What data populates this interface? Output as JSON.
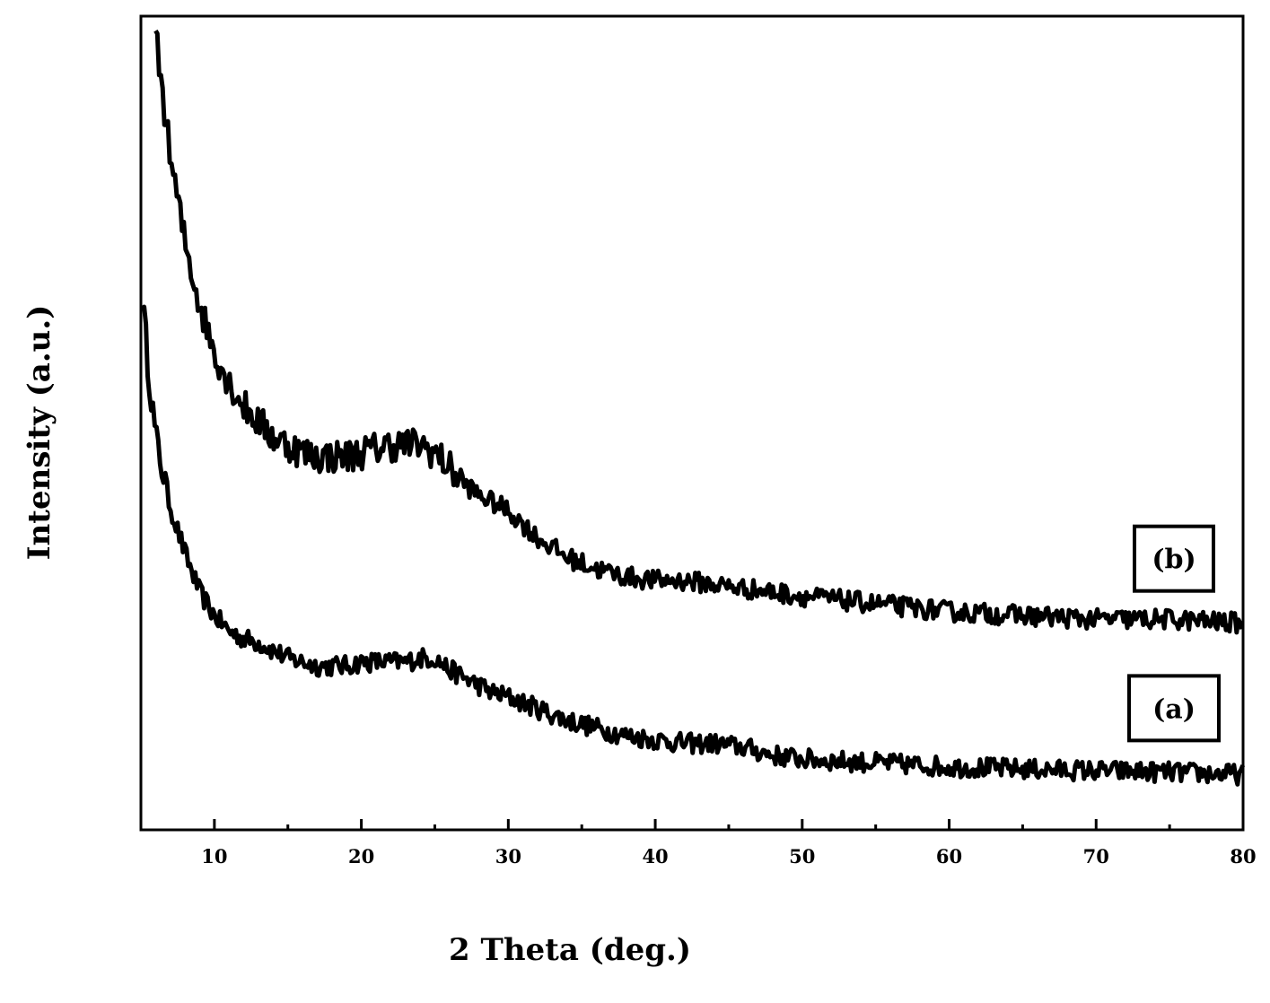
{
  "chart_data": {
    "type": "line",
    "title": "",
    "xlabel": "2 Theta (deg.)",
    "ylabel": "Intensity (a.u.)",
    "xlim": [
      5,
      80
    ],
    "ylim": [
      0,
      100
    ],
    "x_major_ticks": [
      10,
      20,
      30,
      40,
      50,
      60,
      70,
      80
    ],
    "x_minor_ticks": [
      5,
      15,
      25,
      35,
      45,
      55,
      65,
      75
    ],
    "y_tick_labels": false,
    "grid": false,
    "line_color": "#000000",
    "series": [
      {
        "name": "(a)",
        "label_box": true,
        "x": [
          5.1,
          5.5,
          6,
          7,
          8,
          9,
          10,
          11,
          12,
          13,
          14,
          15,
          16,
          17,
          18,
          19,
          20,
          21,
          22,
          23,
          24,
          25,
          26,
          27,
          28,
          29,
          30,
          32,
          34,
          36,
          38,
          40,
          42,
          44,
          46,
          48,
          50,
          55,
          60,
          65,
          70,
          75,
          80
        ],
        "y": [
          64,
          55,
          46,
          37,
          31,
          26,
          23,
          21,
          20,
          19.5,
          18.5,
          17.5,
          17,
          16.5,
          16.5,
          16.5,
          17,
          17,
          17,
          17,
          17.5,
          17.5,
          16,
          15,
          14,
          13,
          12.5,
          11,
          9.5,
          8.5,
          7.5,
          7,
          6.5,
          6.5,
          6,
          5,
          4.5,
          4,
          3.5,
          3.2,
          3,
          2.8,
          2.5
        ]
      },
      {
        "name": "(b)",
        "label_box": true,
        "x": [
          6,
          6.5,
          7,
          8,
          9,
          10,
          11,
          12,
          13,
          14,
          15,
          16,
          17,
          18,
          19,
          20,
          21,
          22,
          23,
          24,
          25,
          26,
          27,
          28,
          29,
          30,
          32,
          34,
          36,
          38,
          40,
          42,
          44,
          46,
          48,
          50,
          55,
          60,
          65,
          70,
          75,
          80
        ],
        "y": [
          98,
          90,
          82,
          71,
          63,
          57,
          53,
          50,
          48,
          46,
          45,
          44,
          43.5,
          43.5,
          43.5,
          44,
          44.5,
          45,
          45,
          45,
          44,
          42,
          40,
          38.5,
          37.5,
          36.5,
          33,
          30.5,
          29,
          28,
          27.5,
          27.5,
          27,
          26.5,
          26,
          25.5,
          24.5,
          23.5,
          23,
          22.5,
          22.5,
          22
        ]
      }
    ]
  }
}
